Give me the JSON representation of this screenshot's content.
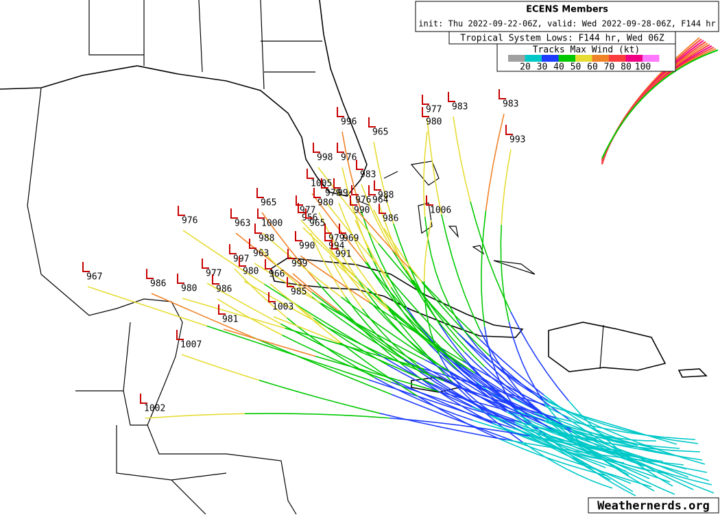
{
  "header": {
    "title": "ECENS Members",
    "subtitle": "init: Thu 2022-09-22-06Z, valid: Wed 2022-09-28-06Z, F144 hr"
  },
  "lows_label": "Tropical System Lows: F144 hr, Wed 06Z",
  "legend": {
    "title": "Tracks Max Wind (kt)",
    "ticks": [
      20,
      30,
      40,
      50,
      60,
      70,
      80,
      100
    ],
    "colors": [
      "#a0a0a0",
      "#00c8c8",
      "#1e3cff",
      "#00c800",
      "#e6dc32",
      "#f08228",
      "#fa3c3c",
      "#f00082",
      "#ff78ff"
    ]
  },
  "lows": [
    "996",
    "965",
    "977",
    "983",
    "980",
    "983",
    "993",
    "998",
    "976",
    "983",
    "1005",
    "979",
    "99",
    "988",
    "964",
    "976",
    "980",
    "990",
    "986",
    "1006",
    "965",
    "977",
    "956",
    "965",
    "976",
    "963",
    "1000",
    "988",
    "979",
    "969",
    "990",
    "994",
    "963",
    "991",
    "997",
    "999",
    "967",
    "980",
    "966",
    "977",
    "986",
    "980",
    "986",
    "985",
    "1003",
    "981",
    "1007",
    "1002"
  ],
  "credit": "Weathernerds.org"
}
